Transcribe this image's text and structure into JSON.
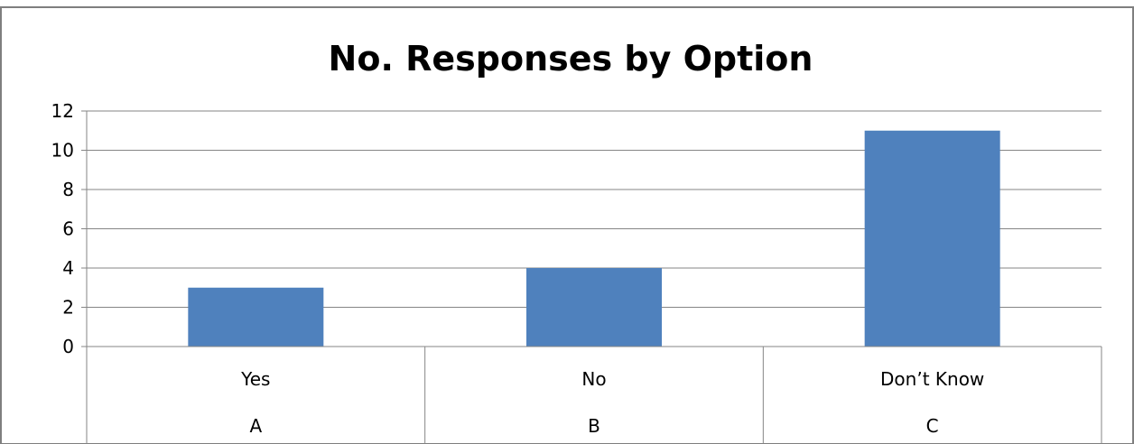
{
  "chart_data": {
    "type": "bar",
    "title": "No. Responses by Option",
    "categories": [
      "Yes",
      "No",
      "Don’t Know"
    ],
    "group_labels": [
      "A",
      "B",
      "C"
    ],
    "values": [
      3,
      4,
      11
    ],
    "ylim": [
      0,
      12
    ],
    "y_ticks": [
      "0",
      "2",
      "4",
      "6",
      "8",
      "10",
      "12"
    ],
    "grid": true,
    "legend": "none",
    "bar_color": "#4F81BD"
  }
}
